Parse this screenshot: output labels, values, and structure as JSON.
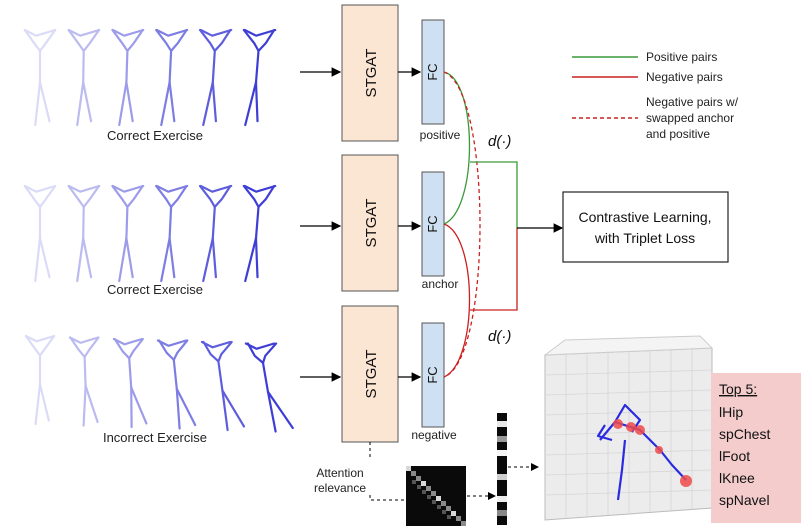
{
  "rows": [
    {
      "caption": "Correct Exercise",
      "encoder": "STGAT",
      "fc": "FC",
      "fc_role": "positive"
    },
    {
      "caption": "Correct Exercise",
      "encoder": "STGAT",
      "fc": "FC",
      "fc_role": "anchor"
    },
    {
      "caption": "Incorrect Exercise",
      "encoder": "STGAT",
      "fc": "FC",
      "fc_role": "negative"
    }
  ],
  "distance_label": "d(·)",
  "legend": {
    "positive": "Positive pairs",
    "negative": "Negative pairs",
    "swapped": [
      "Negative pairs w/",
      "swapped anchor",
      "and positive"
    ]
  },
  "loss_box": [
    "Contrastive Learning,",
    "with Triplet Loss"
  ],
  "attention": [
    "Attention",
    "relevance"
  ],
  "top5": {
    "title": "Top 5:",
    "items": [
      "lHip",
      "spChest",
      "lFoot",
      "lKnee",
      "spNavel"
    ]
  },
  "colors": {
    "encoder_fill": "#fbe5d3",
    "fc_fill": "#cfe0f3",
    "positive": "#3a9a3a",
    "negative": "#cc2020",
    "skeleton": "#3b3bd6",
    "top5_bg": "#f4cccc"
  }
}
